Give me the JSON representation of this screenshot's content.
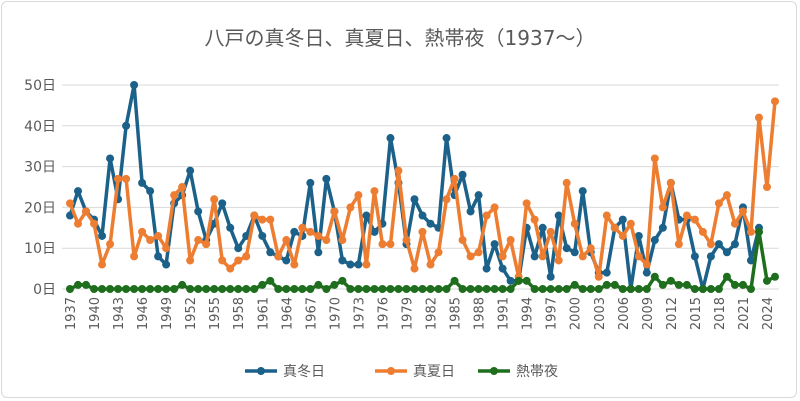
{
  "chart_data": {
    "type": "line",
    "title": "八戸の真冬日、真夏日、熱帯夜（1937～）",
    "xlabel": "",
    "ylabel": "",
    "ylim": [
      0,
      50
    ],
    "yticks": [
      "0日",
      "10日",
      "20日",
      "30日",
      "40日",
      "50日"
    ],
    "grid": true,
    "legend": "bottom",
    "x_start": 1937,
    "x_end": 2025,
    "x_tick_step": 3,
    "series": [
      {
        "name": "真冬日",
        "color": "#1b6189",
        "values": [
          18,
          24,
          19,
          17,
          13,
          32,
          22,
          40,
          50,
          26,
          24,
          8,
          6,
          21,
          23,
          29,
          19,
          12,
          16,
          21,
          15,
          10,
          13,
          18,
          13,
          9,
          8,
          7,
          14,
          13,
          26,
          9,
          27,
          19,
          7,
          6,
          6,
          18,
          14,
          16,
          37,
          26,
          11,
          22,
          18,
          16,
          15,
          37,
          23,
          28,
          19,
          23,
          5,
          11,
          5,
          2,
          2,
          15,
          8,
          15,
          3,
          18,
          10,
          9,
          24,
          9,
          4,
          4,
          15,
          17,
          0,
          13,
          4,
          12,
          15,
          26,
          17,
          17,
          8,
          0,
          8,
          11,
          9,
          11,
          20,
          7,
          15,
          null,
          null
        ]
      },
      {
        "name": "真夏日",
        "color": "#ed7d31",
        "values": [
          21,
          16,
          19,
          16,
          6,
          11,
          27,
          27,
          8,
          14,
          12,
          13,
          10,
          23,
          25,
          7,
          12,
          11,
          22,
          7,
          5,
          7,
          8,
          18,
          17,
          17,
          8,
          12,
          6,
          15,
          14,
          13,
          12,
          19,
          12,
          20,
          23,
          6,
          24,
          11,
          11,
          29,
          12,
          5,
          14,
          6,
          9,
          22,
          27,
          12,
          8,
          9,
          18,
          20,
          8,
          12,
          3,
          21,
          17,
          8,
          14,
          7,
          26,
          16,
          8,
          10,
          3,
          18,
          15,
          13,
          16,
          8,
          6,
          32,
          20,
          26,
          11,
          18,
          17,
          14,
          11,
          21,
          23,
          16,
          19,
          14,
          42,
          25,
          46
        ]
      },
      {
        "name": "熱帯夜",
        "color": "#1e6e1e",
        "values": [
          0,
          1,
          1,
          0,
          0,
          0,
          0,
          0,
          0,
          0,
          0,
          0,
          0,
          0,
          1,
          0,
          0,
          0,
          0,
          0,
          0,
          0,
          0,
          0,
          1,
          2,
          0,
          0,
          0,
          0,
          0,
          1,
          0,
          1,
          2,
          0,
          0,
          0,
          0,
          0,
          0,
          0,
          0,
          0,
          0,
          0,
          0,
          0,
          2,
          0,
          0,
          0,
          0,
          0,
          0,
          0,
          2,
          2,
          0,
          0,
          0,
          0,
          0,
          1,
          0,
          0,
          0,
          1,
          1,
          0,
          0,
          0,
          0,
          3,
          1,
          2,
          1,
          1,
          0,
          0,
          0,
          0,
          3,
          1,
          1,
          0,
          14,
          2,
          3
        ]
      }
    ]
  }
}
